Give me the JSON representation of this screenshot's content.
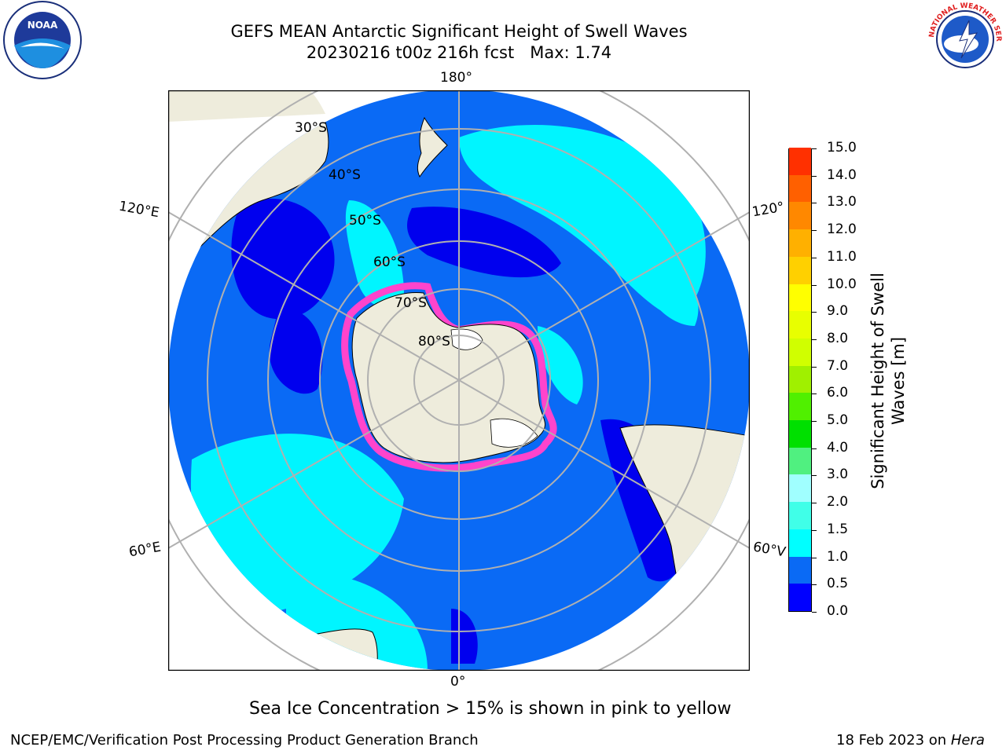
{
  "header": {
    "title_line1": "GEFS MEAN Antarctic Significant Height of Swell Waves",
    "title_line2": "20230216 t00z 216h fcst   Max: 1.74"
  },
  "logos": {
    "noaa_text": "NOAA",
    "nws_text": "NATIONAL WEATHER SERVICE"
  },
  "map": {
    "longitude_labels": {
      "top": "180°",
      "bottom": "0°",
      "upper_left": "120°E",
      "upper_right": "120°",
      "lower_left": "60°E",
      "lower_right": "60°V"
    },
    "latitude_labels": [
      "30°S",
      "40°S",
      "50°S",
      "60°S",
      "70°S",
      "80°S"
    ],
    "colors": {
      "ocean_low": "#0a6af5",
      "ocean_dark": "#0000ee",
      "swell_cyan": "#00f5ff",
      "land": "#eeecdc",
      "sea_ice": "#ff44cc",
      "grid": "#b0b0b0"
    }
  },
  "colorbar": {
    "title_line1": "Significant Height of Swell",
    "title_line2": "Waves [m]",
    "ticks": [
      "0.0",
      "0.5",
      "1.0",
      "1.5",
      "2.0",
      "3.0",
      "4.0",
      "5.0",
      "6.0",
      "7.0",
      "8.0",
      "9.0",
      "10.0",
      "11.0",
      "12.0",
      "13.0",
      "14.0",
      "15.0"
    ],
    "colors": [
      "#0000ff",
      "#0a6af5",
      "#00ffff",
      "#40ffe8",
      "#a0ffff",
      "#50f080",
      "#00e000",
      "#50f000",
      "#a0f000",
      "#d0ff00",
      "#e8ff00",
      "#ffff00",
      "#ffd000",
      "#ffb000",
      "#ff8800",
      "#ff6000",
      "#ff3000",
      "#ff0000"
    ]
  },
  "annotation": "Sea Ice Concentration > 15% is shown in pink to yellow",
  "footer": {
    "left": "NCEP/EMC/Verification Post Processing Product Generation Branch",
    "right_prefix": "18 Feb 2023 on ",
    "right_machine": "Hera"
  }
}
